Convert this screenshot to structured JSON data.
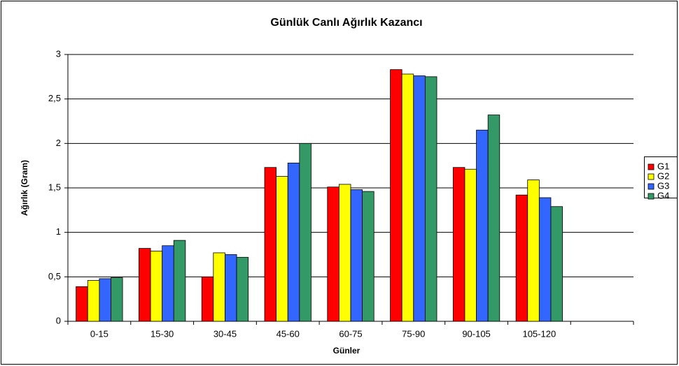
{
  "chart_data": {
    "type": "bar",
    "title": "Günlük Canlı Ağırlık Kazancı",
    "x_label": "Günler",
    "y_label": "Ağırlık (Gram)",
    "categories": [
      "0-15",
      "15-30",
      "30-45",
      "45-60",
      "60-75",
      "75-90",
      "90-105",
      "105-120",
      null
    ],
    "series": [
      {
        "name": "G1",
        "color": "#ff0000",
        "values": [
          0.39,
          0.82,
          0.5,
          1.73,
          1.51,
          2.83,
          1.73,
          1.42,
          null
        ]
      },
      {
        "name": "G2",
        "color": "#ffff00",
        "values": [
          0.46,
          0.79,
          0.77,
          1.63,
          1.54,
          2.78,
          1.71,
          1.59,
          null
        ]
      },
      {
        "name": "G3",
        "color": "#3366ff",
        "values": [
          0.48,
          0.85,
          0.75,
          1.78,
          1.48,
          2.76,
          2.15,
          1.39,
          null
        ]
      },
      {
        "name": "G4",
        "color": "#339966",
        "values": [
          0.49,
          0.91,
          0.72,
          2.0,
          1.46,
          2.75,
          2.32,
          1.29,
          null
        ]
      }
    ],
    "ylim": [
      0,
      3
    ],
    "yticks": [
      0,
      {
        "value": 0.5,
        "label": "0,5"
      },
      1,
      {
        "value": 1.5,
        "label": "1,5"
      },
      2,
      {
        "value": 2.5,
        "label": "2,5"
      },
      3
    ],
    "grid": true,
    "legend": "right"
  }
}
